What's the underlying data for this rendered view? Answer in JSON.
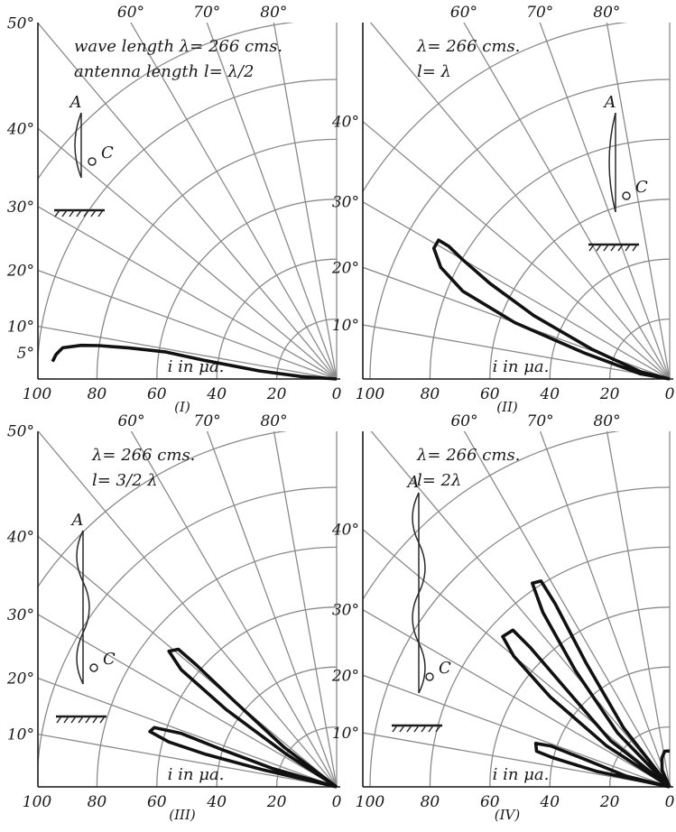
{
  "panels": [
    {
      "id": "I",
      "caption": "(I)",
      "annotation_lines": [
        "wave length λ= 266 cms.",
        "antenna length  l= λ/2"
      ],
      "left_angle_labels": [
        "50°",
        "40°",
        "30°",
        "20°",
        "10°",
        "5°"
      ],
      "top_angle_labels": [
        "60°",
        "70°",
        "80°"
      ],
      "radial_labels": [
        "100",
        "80",
        "60",
        "40",
        "20",
        "0"
      ],
      "radial_axis_label": "i in μa.",
      "antenna_labels": [
        "A",
        "C"
      ]
    },
    {
      "id": "II",
      "caption": "(II)",
      "annotation_lines": [
        "λ= 266 cms.",
        "l= λ"
      ],
      "left_angle_labels": [
        "50°",
        "40°",
        "30°",
        "20°",
        "10°"
      ],
      "top_angle_labels": [
        "60°",
        "70°",
        "80°"
      ],
      "radial_labels": [
        "100",
        "80",
        "60",
        "40",
        "20",
        "0"
      ],
      "radial_axis_label": "i in μa.",
      "antenna_labels": [
        "A",
        "C"
      ]
    },
    {
      "id": "III",
      "caption": "(III)",
      "annotation_lines": [
        "λ= 266 cms.",
        "l= 3/2 λ"
      ],
      "left_angle_labels": [
        "50°",
        "40°",
        "30°",
        "20°",
        "10°"
      ],
      "top_angle_labels": [
        "60°",
        "70°",
        "80°"
      ],
      "radial_labels": [
        "100",
        "80",
        "60",
        "40",
        "20",
        "0"
      ],
      "radial_axis_label": "i in μa.",
      "antenna_labels": [
        "A",
        "C"
      ]
    },
    {
      "id": "IV",
      "caption": "(IV)",
      "annotation_lines": [
        "λ= 266 cms.",
        "l= 2λ"
      ],
      "left_angle_labels": [
        "50°",
        "40°",
        "30°",
        "20°",
        "10°"
      ],
      "top_angle_labels": [
        "60°",
        "70°",
        "80°"
      ],
      "radial_labels": [
        "100",
        "80",
        "60",
        "40",
        "20",
        "0"
      ],
      "radial_axis_label": "i in μa.",
      "antenna_labels": [
        "A",
        "C"
      ]
    }
  ],
  "chart_data": [
    {
      "type": "polar",
      "panel": "I",
      "angle_unit": "degrees",
      "radial_unit": "μa",
      "r_range": [
        0,
        100
      ],
      "theta_range": [
        0,
        90
      ],
      "series": [
        {
          "points": [
            [
              0,
              0
            ],
            [
              4,
              12
            ],
            [
              6,
              26
            ],
            [
              8,
              44
            ],
            [
              9,
              58
            ],
            [
              8.5,
              70
            ],
            [
              8,
              80
            ],
            [
              7.5,
              86
            ],
            [
              6.5,
              92
            ],
            [
              5,
              94
            ],
            [
              3.5,
              95
            ]
          ]
        }
      ]
    },
    {
      "type": "polar",
      "panel": "II",
      "angle_unit": "degrees",
      "radial_unit": "μa",
      "r_range": [
        0,
        100
      ],
      "theta_range": [
        0,
        90
      ],
      "series": [
        {
          "points": [
            [
              0,
              0
            ],
            [
              10,
              10
            ],
            [
              17,
              30
            ],
            [
              20,
              55
            ],
            [
              23,
              75
            ],
            [
              26,
              85
            ],
            [
              29,
              90
            ],
            [
              31,
              90
            ],
            [
              31,
              86
            ],
            [
              30,
              80
            ],
            [
              28,
              68
            ],
            [
              25,
              50
            ],
            [
              21,
              28
            ],
            [
              14,
              10
            ],
            [
              0,
              0
            ]
          ]
        }
      ]
    },
    {
      "type": "polar",
      "panel": "III",
      "angle_unit": "degrees",
      "radial_unit": "μa",
      "r_range": [
        0,
        100
      ],
      "theta_range": [
        0,
        90
      ],
      "series": [
        {
          "points": [
            [
              0,
              0
            ],
            [
              13,
              25
            ],
            [
              14,
              45
            ],
            [
              15,
              58
            ],
            [
              16.5,
              65
            ],
            [
              18,
              64
            ],
            [
              19,
              55
            ],
            [
              18,
              40
            ],
            [
              16,
              22
            ],
            [
              0,
              0
            ]
          ]
        },
        {
          "points": [
            [
              0,
              0
            ],
            [
              33,
              20
            ],
            [
              35,
              45
            ],
            [
              37,
              65
            ],
            [
              39,
              72
            ],
            [
              41,
              70
            ],
            [
              41,
              62
            ],
            [
              40,
              45
            ],
            [
              37,
              22
            ],
            [
              0,
              0
            ]
          ]
        }
      ]
    },
    {
      "type": "polar",
      "panel": "IV",
      "angle_unit": "degrees",
      "radial_unit": "μa",
      "r_range": [
        0,
        100
      ],
      "theta_range": [
        0,
        90
      ],
      "series": [
        {
          "points": [
            [
              0,
              0
            ],
            [
              12,
              25
            ],
            [
              14,
              40
            ],
            [
              15,
              46
            ],
            [
              18,
              47
            ],
            [
              19,
              42
            ],
            [
              18,
              30
            ],
            [
              14,
              15
            ],
            [
              0,
              0
            ]
          ]
        },
        {
          "points": [
            [
              0,
              0
            ],
            [
              33,
              25
            ],
            [
              37,
              50
            ],
            [
              40,
              68
            ],
            [
              42,
              75
            ],
            [
              45,
              74
            ],
            [
              45,
              66
            ],
            [
              43,
              45
            ],
            [
              38,
              25
            ],
            [
              0,
              0
            ]
          ]
        },
        {
          "points": [
            [
              0,
              0
            ],
            [
              46,
              25
            ],
            [
              51,
              50
            ],
            [
              54,
              72
            ],
            [
              56,
              82
            ],
            [
              58,
              81
            ],
            [
              58,
              72
            ],
            [
              56,
              50
            ],
            [
              52,
              25
            ],
            [
              0,
              0
            ]
          ]
        },
        {
          "points": [
            [
              0,
              0
            ],
            [
              65,
              6
            ],
            [
              75,
              10
            ],
            [
              82,
              12
            ],
            [
              90,
              12
            ]
          ]
        }
      ]
    }
  ]
}
